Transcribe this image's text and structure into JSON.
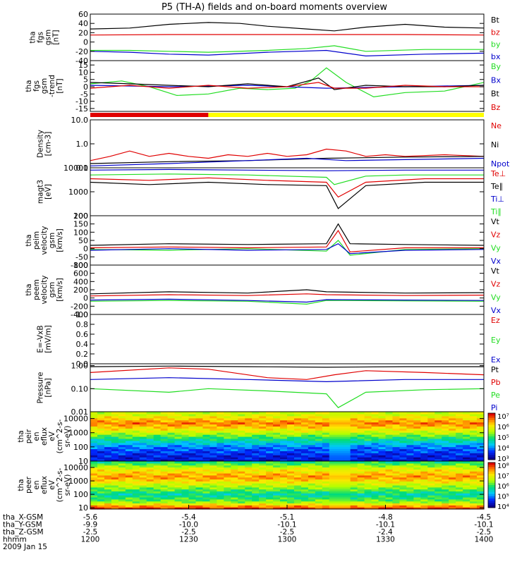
{
  "title": "P5 (TH-A) fields and on-board moments overview",
  "colors": {
    "black": "#000000",
    "red": "#e00000",
    "green": "#22dd22",
    "blue": "#0000cc",
    "yellow": "#ffff00"
  },
  "status_bar": {
    "segments": [
      {
        "from": 0,
        "to": 0.3,
        "color": "red"
      },
      {
        "from": 0.3,
        "to": 1.0,
        "color": "yellow"
      }
    ]
  },
  "chart_data": [
    {
      "type": "line",
      "id": "fgs-gsm",
      "ylabel": [
        "tha",
        "fgs",
        "gsm",
        "[nT]"
      ],
      "ylim": [
        -40,
        60
      ],
      "yticks": [
        60,
        40,
        20,
        0,
        -20,
        -40
      ],
      "legend": [
        {
          "name": "Bt",
          "color": "black"
        },
        {
          "name": "bz",
          "color": "red"
        },
        {
          "name": "by",
          "color": "green"
        },
        {
          "name": "bx",
          "color": "blue"
        }
      ],
      "series": [
        {
          "name": "Bt",
          "color": "black",
          "x": [
            0,
            0.1,
            0.2,
            0.3,
            0.38,
            0.45,
            0.55,
            0.62,
            0.7,
            0.8,
            0.9,
            1.0
          ],
          "y": [
            28,
            30,
            38,
            42,
            40,
            34,
            28,
            24,
            32,
            38,
            32,
            30
          ]
        },
        {
          "name": "bz",
          "color": "red",
          "x": [
            0,
            0.2,
            0.4,
            0.6,
            0.8,
            1.0
          ],
          "y": [
            15,
            16,
            16,
            16,
            16,
            15
          ]
        },
        {
          "name": "by",
          "color": "green",
          "x": [
            0,
            0.1,
            0.2,
            0.3,
            0.45,
            0.55,
            0.62,
            0.7,
            0.85,
            1.0
          ],
          "y": [
            -18,
            -18,
            -20,
            -22,
            -18,
            -14,
            -8,
            -20,
            -16,
            -16
          ]
        },
        {
          "name": "bx",
          "color": "blue",
          "x": [
            0,
            0.1,
            0.2,
            0.3,
            0.45,
            0.6,
            0.7,
            0.85,
            1.0
          ],
          "y": [
            -20,
            -22,
            -26,
            -28,
            -22,
            -18,
            -30,
            -26,
            -24
          ]
        }
      ]
    },
    {
      "type": "line",
      "id": "fgs-gsm-detrended",
      "ylabel": [
        "tha",
        "fgs",
        "gsm",
        "-trend",
        "[nT]"
      ],
      "ylim": [
        -17,
        18
      ],
      "yticks": [
        15,
        10,
        5,
        0,
        -5,
        -10,
        -15
      ],
      "legend": [
        {
          "name": "By",
          "color": "green"
        },
        {
          "name": "Bx",
          "color": "blue"
        },
        {
          "name": "Bt",
          "color": "black"
        },
        {
          "name": "Bz",
          "color": "red"
        }
      ],
      "series": [
        {
          "name": "By",
          "color": "green",
          "x": [
            0,
            0.08,
            0.15,
            0.22,
            0.3,
            0.38,
            0.45,
            0.52,
            0.56,
            0.6,
            0.65,
            0.72,
            0.8,
            0.9,
            1.0
          ],
          "y": [
            2,
            4,
            0,
            -6,
            -5,
            -1,
            -2,
            -1,
            4,
            13,
            3,
            -7,
            -4,
            -3,
            3
          ]
        },
        {
          "name": "Bx",
          "color": "blue",
          "x": [
            0,
            0.2,
            0.4,
            0.6,
            0.8,
            1.0
          ],
          "y": [
            1,
            0,
            1,
            -1,
            0,
            1
          ]
        },
        {
          "name": "Bt",
          "color": "black",
          "x": [
            0,
            0.1,
            0.2,
            0.3,
            0.4,
            0.5,
            0.58,
            0.62,
            0.7,
            0.8,
            0.9,
            1.0
          ],
          "y": [
            3,
            2,
            1,
            0,
            2,
            0,
            6,
            -2,
            1,
            0,
            0,
            1
          ]
        },
        {
          "name": "Bz",
          "color": "red",
          "x": [
            0,
            0.1,
            0.2,
            0.3,
            0.4,
            0.5,
            0.58,
            0.62,
            0.7,
            0.8,
            0.9,
            1.0
          ],
          "y": [
            -1,
            1,
            -1,
            1,
            -1,
            0,
            3,
            -1,
            -1,
            1,
            0,
            0
          ]
        }
      ]
    },
    {
      "type": "line",
      "id": "density",
      "log": true,
      "ylabel": [
        "Density",
        "[cm-3]"
      ],
      "ylim": [
        0.1,
        10
      ],
      "yticks": [
        10.0,
        1.0,
        0.1
      ],
      "ytick_labels": [
        "10.0",
        "1.0",
        "0.1"
      ],
      "legend": [
        {
          "name": "Ne",
          "color": "red"
        },
        {
          "name": "Ni",
          "color": "black"
        },
        {
          "name": "Npot",
          "color": "blue"
        }
      ],
      "series": [
        {
          "name": "Ne",
          "color": "red",
          "x": [
            0,
            0.05,
            0.1,
            0.15,
            0.2,
            0.25,
            0.3,
            0.35,
            0.4,
            0.45,
            0.5,
            0.55,
            0.6,
            0.65,
            0.7,
            0.75,
            0.8,
            0.9,
            1.0
          ],
          "y": [
            0.2,
            0.3,
            0.5,
            0.3,
            0.4,
            0.3,
            0.25,
            0.35,
            0.3,
            0.4,
            0.3,
            0.35,
            0.6,
            0.5,
            0.3,
            0.35,
            0.3,
            0.35,
            0.3
          ]
        },
        {
          "name": "Ni",
          "color": "black",
          "x": [
            0,
            0.2,
            0.4,
            0.6,
            0.8,
            1.0
          ],
          "y": [
            0.15,
            0.18,
            0.2,
            0.25,
            0.28,
            0.3
          ]
        },
        {
          "name": "Npot",
          "color": "blue",
          "x": [
            0,
            0.2,
            0.4,
            0.55,
            0.65,
            0.8,
            1.0
          ],
          "y": [
            0.12,
            0.15,
            0.2,
            0.25,
            0.2,
            0.22,
            0.25
          ]
        }
      ]
    },
    {
      "type": "line",
      "id": "temperature",
      "log": true,
      "ylabel": [
        "magt3",
        "[eV]"
      ],
      "ylim": [
        100,
        10000
      ],
      "yticks": [
        10000,
        1000,
        100
      ],
      "ytick_labels": [
        "10000",
        "1000",
        "100"
      ],
      "legend": [
        {
          "name": "Te⊥",
          "color": "red"
        },
        {
          "name": "Te∥",
          "color": "black"
        },
        {
          "name": "Ti⊥",
          "color": "blue"
        },
        {
          "name": "Ti∥",
          "color": "green"
        }
      ],
      "series": [
        {
          "name": "Ti⊥",
          "color": "blue",
          "x": [
            0,
            0.2,
            0.4,
            0.6,
            0.8,
            1.0
          ],
          "y": [
            8000,
            8500,
            8000,
            7500,
            8000,
            8000
          ]
        },
        {
          "name": "Ti∥",
          "color": "green",
          "x": [
            0,
            0.2,
            0.4,
            0.6,
            0.62,
            0.7,
            0.8,
            1.0
          ],
          "y": [
            5000,
            5500,
            5000,
            4000,
            2000,
            4500,
            5000,
            5000
          ]
        },
        {
          "name": "Te⊥",
          "color": "red",
          "x": [
            0,
            0.15,
            0.3,
            0.45,
            0.6,
            0.63,
            0.7,
            0.85,
            1.0
          ],
          "y": [
            3500,
            3000,
            3800,
            3000,
            2500,
            600,
            2500,
            3500,
            3500
          ]
        },
        {
          "name": "Te∥",
          "color": "black",
          "x": [
            0,
            0.15,
            0.3,
            0.45,
            0.6,
            0.63,
            0.7,
            0.85,
            1.0
          ],
          "y": [
            2500,
            2000,
            2500,
            2000,
            1800,
            200,
            1800,
            2500,
            2500
          ]
        }
      ]
    },
    {
      "type": "line",
      "id": "esa-velocity",
      "ylabel": [
        "tha",
        "peim",
        "velocity",
        "gsm",
        "[km/s]"
      ],
      "ylim": [
        -100,
        200
      ],
      "yticks": [
        200,
        150,
        100,
        50,
        0,
        -50,
        -100
      ],
      "legend": [
        {
          "name": "Vt",
          "color": "black"
        },
        {
          "name": "Vz",
          "color": "red"
        },
        {
          "name": "Vy",
          "color": "green"
        },
        {
          "name": "Vx",
          "color": "blue"
        }
      ],
      "series": [
        {
          "name": "Vt",
          "color": "black",
          "x": [
            0,
            0.2,
            0.4,
            0.6,
            0.63,
            0.66,
            0.8,
            1.0
          ],
          "y": [
            20,
            30,
            25,
            30,
            150,
            30,
            25,
            20
          ]
        },
        {
          "name": "Vz",
          "color": "red",
          "x": [
            0,
            0.2,
            0.4,
            0.6,
            0.63,
            0.66,
            0.8,
            1.0
          ],
          "y": [
            5,
            10,
            5,
            10,
            110,
            -20,
            5,
            5
          ]
        },
        {
          "name": "Vy",
          "color": "green",
          "x": [
            0,
            0.2,
            0.4,
            0.6,
            0.63,
            0.66,
            0.8,
            1.0
          ],
          "y": [
            -5,
            -10,
            0,
            -15,
            50,
            -40,
            -5,
            0
          ]
        },
        {
          "name": "Vx",
          "color": "blue",
          "x": [
            0,
            0.2,
            0.4,
            0.6,
            0.63,
            0.66,
            0.8,
            1.0
          ],
          "y": [
            -10,
            0,
            -10,
            -5,
            30,
            -30,
            -10,
            -5
          ]
        }
      ]
    },
    {
      "type": "line",
      "id": "peem-velocity",
      "ylabel": [
        "tha",
        "peem",
        "velocity",
        "gsm",
        "[km/s]"
      ],
      "ylim": [
        -400,
        800
      ],
      "yticks": [
        800,
        600,
        400,
        200,
        0,
        -200,
        -400
      ],
      "legend": [
        {
          "name": "Vt",
          "color": "black"
        },
        {
          "name": "Vz",
          "color": "red"
        },
        {
          "name": "Vy",
          "color": "green"
        },
        {
          "name": "Vx",
          "color": "blue"
        }
      ],
      "series": [
        {
          "name": "Vt",
          "color": "black",
          "x": [
            0,
            0.2,
            0.4,
            0.55,
            0.6,
            0.8,
            1.0
          ],
          "y": [
            100,
            150,
            120,
            200,
            150,
            120,
            130
          ]
        },
        {
          "name": "Vz",
          "color": "red",
          "x": [
            0,
            0.2,
            0.4,
            0.55,
            0.6,
            0.8,
            1.0
          ],
          "y": [
            50,
            80,
            60,
            100,
            80,
            60,
            70
          ]
        },
        {
          "name": "Vy",
          "color": "green",
          "x": [
            0,
            0.2,
            0.4,
            0.55,
            0.6,
            0.8,
            1.0
          ],
          "y": [
            -80,
            -60,
            -80,
            -150,
            -60,
            -70,
            -80
          ]
        },
        {
          "name": "Vx",
          "color": "blue",
          "x": [
            0,
            0.2,
            0.4,
            0.55,
            0.6,
            0.8,
            1.0
          ],
          "y": [
            -50,
            -30,
            -60,
            -100,
            -40,
            -50,
            -60
          ]
        }
      ]
    },
    {
      "type": "line",
      "id": "efield",
      "ylabel": [
        "E=-VxB",
        "[mV/m]"
      ],
      "ylim": [
        0,
        1
      ],
      "yticks": [
        1.0,
        0.8,
        0.6,
        0.4,
        0.2,
        0.0
      ],
      "ytick_labels": [
        "1.0",
        "0.8",
        "0.6",
        "0.4",
        "0.2",
        "0.0"
      ],
      "legend": [
        {
          "name": "Ez",
          "color": "red"
        },
        {
          "name": "Ey",
          "color": "green"
        },
        {
          "name": "Ex",
          "color": "blue"
        }
      ],
      "series": []
    },
    {
      "type": "line",
      "id": "pressure",
      "log": true,
      "ylabel": [
        "Pressure",
        "[nPa]"
      ],
      "ylim": [
        0.01,
        1.2
      ],
      "yticks": [
        1.0,
        0.1,
        0.01
      ],
      "ytick_labels": [
        "1.00",
        "0.10",
        "0.01"
      ],
      "legend": [
        {
          "name": "Pt",
          "color": "black"
        },
        {
          "name": "Pb",
          "color": "red"
        },
        {
          "name": "Pe",
          "color": "green"
        },
        {
          "name": "Pi",
          "color": "blue"
        }
      ],
      "series": [
        {
          "name": "Pt",
          "color": "black",
          "x": [
            0,
            0.2,
            0.4,
            0.6,
            0.8,
            1.0
          ],
          "y": [
            0.9,
            0.95,
            0.9,
            0.85,
            0.9,
            0.9
          ]
        },
        {
          "name": "Pb",
          "color": "red",
          "x": [
            0,
            0.2,
            0.3,
            0.45,
            0.55,
            0.62,
            0.7,
            0.85,
            1.0
          ],
          "y": [
            0.5,
            0.8,
            0.7,
            0.3,
            0.25,
            0.4,
            0.6,
            0.5,
            0.4
          ]
        },
        {
          "name": "Pi",
          "color": "blue",
          "x": [
            0,
            0.2,
            0.4,
            0.6,
            0.8,
            1.0
          ],
          "y": [
            0.25,
            0.3,
            0.25,
            0.2,
            0.25,
            0.25
          ]
        },
        {
          "name": "Pe",
          "color": "green",
          "x": [
            0,
            0.2,
            0.3,
            0.45,
            0.6,
            0.63,
            0.7,
            0.85,
            1.0
          ],
          "y": [
            0.1,
            0.07,
            0.1,
            0.08,
            0.06,
            0.015,
            0.07,
            0.09,
            0.1
          ]
        }
      ]
    },
    {
      "type": "heatmap",
      "id": "peir-eflux",
      "log": true,
      "ylabel": [
        "tha",
        "peir",
        "en",
        "eflux",
        "eV",
        "(cm^2-s-",
        "sr-eV)"
      ],
      "ylim": [
        10,
        30000
      ],
      "yticks": [
        10000,
        1000,
        100,
        10
      ],
      "ytick_labels": [
        "10000",
        "1000",
        "100",
        "10"
      ],
      "colorbar": {
        "ticks": [
          "10⁷",
          "10⁶",
          "10⁵",
          "10⁴",
          "10³"
        ]
      },
      "profile": [
        {
          "y": 20,
          "v": 0.1
        },
        {
          "y": 100,
          "v": 0.22
        },
        {
          "y": 400,
          "v": 0.45
        },
        {
          "y": 1500,
          "v": 0.7
        },
        {
          "y": 5000,
          "v": 0.88
        },
        {
          "y": 20000,
          "v": 0.65
        }
      ]
    },
    {
      "type": "heatmap",
      "id": "peer-eflux",
      "log": true,
      "ylabel": [
        "tha",
        "peer",
        "en",
        "eflux",
        "eV",
        "(cm^2-s-",
        "sr-eV)"
      ],
      "ylim": [
        8,
        30000
      ],
      "yticks": [
        10000,
        1000,
        100,
        10
      ],
      "ytick_labels": [
        "10000",
        "1000",
        "100",
        "10"
      ],
      "colorbar": {
        "ticks": [
          "10⁸",
          "10⁷",
          "10⁶",
          "10⁵",
          "10⁴"
        ]
      },
      "profile": [
        {
          "y": 10,
          "v": 0.95
        },
        {
          "y": 30,
          "v": 0.55
        },
        {
          "y": 100,
          "v": 0.4
        },
        {
          "y": 400,
          "v": 0.6
        },
        {
          "y": 2000,
          "v": 0.85
        },
        {
          "y": 8000,
          "v": 0.7
        },
        {
          "y": 25000,
          "v": 0.45
        }
      ]
    }
  ],
  "xaxis": {
    "ticks": [
      0,
      0.25,
      0.5,
      0.75,
      1.0
    ],
    "rows": [
      {
        "label": "tha_X-GSM",
        "values": [
          "-5.6",
          "-5.4",
          "-5.1",
          "-4.8",
          "-4.5"
        ]
      },
      {
        "label": "tha_Y-GSM",
        "values": [
          "-9.9",
          "-10.0",
          "-10.1",
          "-10.1",
          "-10.1"
        ]
      },
      {
        "label": "tha_Z-GSM",
        "values": [
          "-2.5",
          "-2.5",
          "-2.5",
          "-2.4",
          "-2.5"
        ]
      },
      {
        "label": "hhmm",
        "values": [
          "1200",
          "1230",
          "1300",
          "1330",
          "1400"
        ]
      }
    ],
    "date": "2009 Jan 15"
  }
}
